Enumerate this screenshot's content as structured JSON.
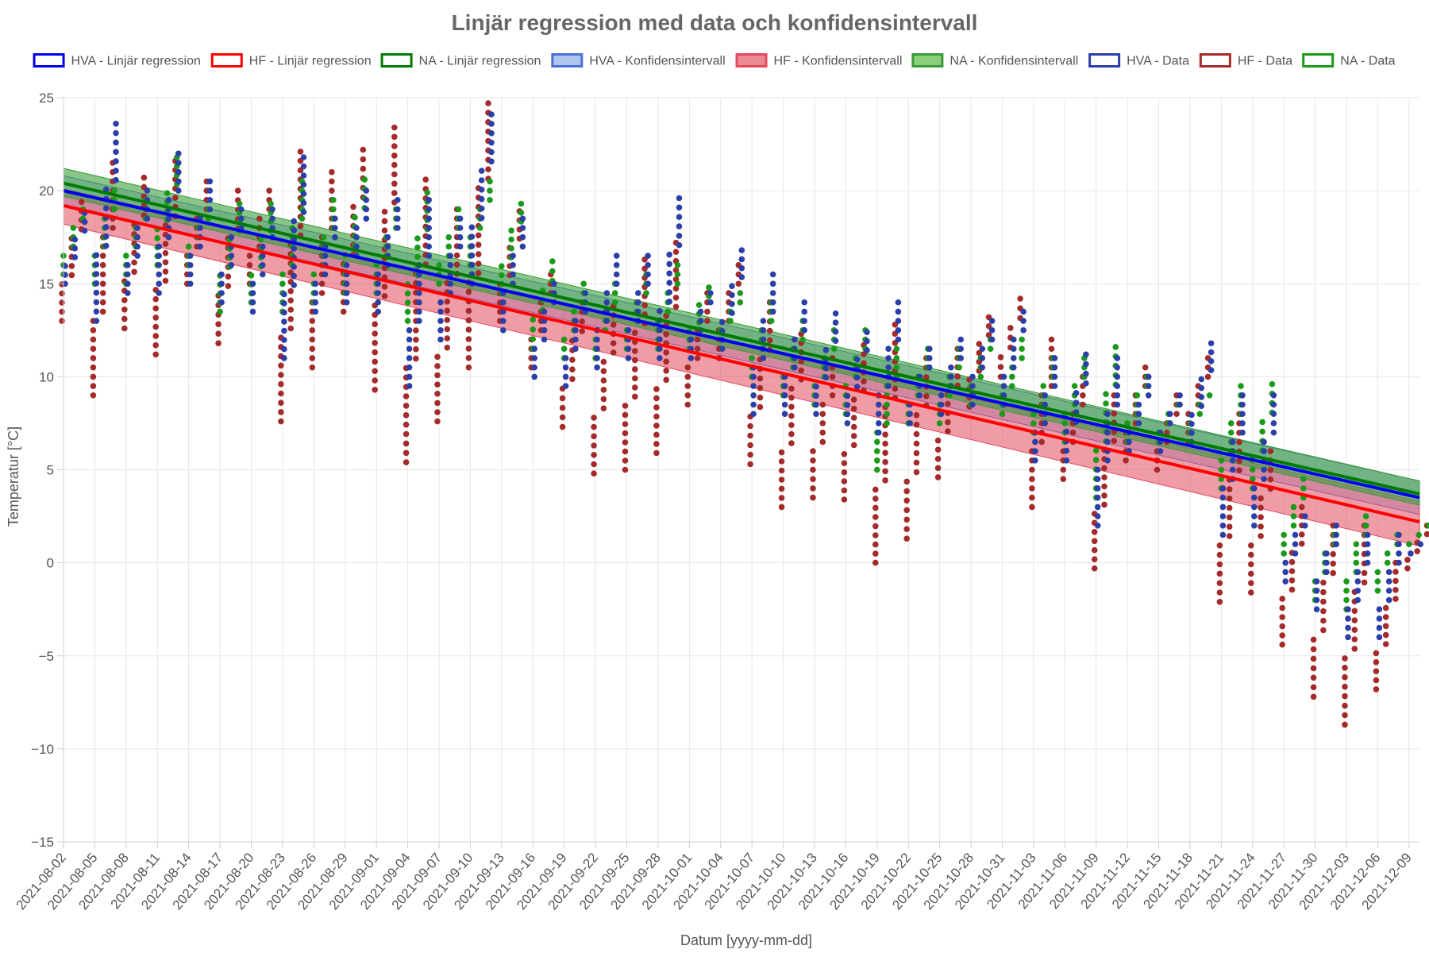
{
  "chart_data": {
    "type": "scatter",
    "title": "Linjär regression med data och konfidensintervall",
    "xlabel": "Datum [yyyy-mm-dd]",
    "ylabel": "Temperatur [°C]",
    "ylim": [
      -15,
      25
    ],
    "y_ticks": [
      25,
      20,
      15,
      10,
      5,
      0,
      -5,
      -10,
      -15
    ],
    "y_tick_labels": [
      "25",
      "20",
      "15",
      "10",
      "5",
      "0",
      "−5",
      "−10",
      "−15"
    ],
    "xlim": [
      "2021-08-02",
      "2021-12-10"
    ],
    "x_ticks": [
      "2021-08-02",
      "2021-08-05",
      "2021-08-08",
      "2021-08-11",
      "2021-08-14",
      "2021-08-17",
      "2021-08-20",
      "2021-08-23",
      "2021-08-26",
      "2021-08-29",
      "2021-09-01",
      "2021-09-04",
      "2021-09-07",
      "2021-09-10",
      "2021-09-13",
      "2021-09-16",
      "2021-09-19",
      "2021-09-22",
      "2021-09-25",
      "2021-09-28",
      "2021-10-01",
      "2021-10-04",
      "2021-10-07",
      "2021-10-10",
      "2021-10-13",
      "2021-10-16",
      "2021-10-19",
      "2021-10-22",
      "2021-10-25",
      "2021-10-28",
      "2021-10-31",
      "2021-11-03",
      "2021-11-06",
      "2021-11-09",
      "2021-11-12",
      "2021-11-15",
      "2021-11-18",
      "2021-11-21",
      "2021-11-24",
      "2021-11-27",
      "2021-11-30",
      "2021-12-03",
      "2021-12-06",
      "2021-12-09"
    ],
    "grid": true,
    "legend_position": "top",
    "legend": [
      {
        "label": "HVA - Linjär regression",
        "stroke": "#0000ee",
        "fill": "#ffffff"
      },
      {
        "label": "HF - Linjär regression",
        "stroke": "#ff0000",
        "fill": "#ffffff"
      },
      {
        "label": "NA - Linjär regression",
        "stroke": "#007a00",
        "fill": "#ffffff"
      },
      {
        "label": "HVA - Konfidensintervall",
        "stroke": "#4a6fd8",
        "fill": "#aec6ec"
      },
      {
        "label": "HF - Konfidensintervall",
        "stroke": "#e24a5e",
        "fill": "#ec8a94"
      },
      {
        "label": "NA - Konfidensintervall",
        "stroke": "#3a9a3a",
        "fill": "#8ad07a"
      },
      {
        "label": "HVA - Data",
        "stroke": "#2b3fa8",
        "fill": "#ffffff"
      },
      {
        "label": "HF - Data",
        "stroke": "#a52a2a",
        "fill": "#ffffff"
      },
      {
        "label": "NA - Data",
        "stroke": "#1a9a1a",
        "fill": "#ffffff"
      }
    ],
    "regression": [
      {
        "series": "HVA",
        "color": "#0000ee",
        "x": [
          "2021-08-02",
          "2021-12-10"
        ],
        "y": [
          20.0,
          3.5
        ]
      },
      {
        "series": "HF",
        "color": "#ff0000",
        "x": [
          "2021-08-02",
          "2021-12-10"
        ],
        "y": [
          19.2,
          2.2
        ]
      },
      {
        "series": "NA",
        "color": "#007a00",
        "x": [
          "2021-08-02",
          "2021-12-10"
        ],
        "y": [
          20.4,
          3.7
        ]
      }
    ],
    "confidence_intervals": [
      {
        "series": "HVA",
        "fill": "rgba(120,150,220,0.45)",
        "stroke": "#4a6fd8",
        "x": [
          "2021-08-02",
          "2021-12-10"
        ],
        "lower": [
          19.2,
          2.6
        ],
        "upper": [
          20.8,
          4.4
        ]
      },
      {
        "series": "HF",
        "fill": "rgba(226,74,94,0.55)",
        "stroke": "#e24a5e",
        "x": [
          "2021-08-02",
          "2021-12-10"
        ],
        "lower": [
          18.2,
          0.9
        ],
        "upper": [
          20.1,
          3.3
        ]
      },
      {
        "series": "NA",
        "fill": "rgba(60,160,60,0.6)",
        "stroke": "#3a9a3a",
        "x": [
          "2021-08-02",
          "2021-12-10"
        ],
        "lower": [
          19.7,
          3.1
        ],
        "upper": [
          21.2,
          4.4
        ]
      }
    ],
    "data_series": [
      {
        "name": "HF",
        "color": "#a52a2a",
        "x": [
          "2021-08-02",
          "2021-08-05",
          "2021-08-08",
          "2021-08-11",
          "2021-08-14",
          "2021-08-17",
          "2021-08-20",
          "2021-08-23",
          "2021-08-26",
          "2021-08-29",
          "2021-09-01",
          "2021-09-04",
          "2021-09-07",
          "2021-09-10",
          "2021-09-13",
          "2021-09-16",
          "2021-09-19",
          "2021-09-22",
          "2021-09-25",
          "2021-09-28",
          "2021-10-01",
          "2021-10-04",
          "2021-10-07",
          "2021-10-10",
          "2021-10-13",
          "2021-10-16",
          "2021-10-19",
          "2021-10-22",
          "2021-10-25",
          "2021-10-28",
          "2021-10-31",
          "2021-11-03",
          "2021-11-06",
          "2021-11-09",
          "2021-11-12",
          "2021-11-15",
          "2021-11-18",
          "2021-11-21",
          "2021-11-24",
          "2021-11-27",
          "2021-11-30",
          "2021-12-03",
          "2021-12-06",
          "2021-12-09"
        ],
        "ymin": [
          13.0,
          9.0,
          12.6,
          11.2,
          15.0,
          11.8,
          15.0,
          7.6,
          10.5,
          13.5,
          9.3,
          5.4,
          7.6,
          10.5,
          13.0,
          10.5,
          7.3,
          4.8,
          5.0,
          5.9,
          8.5,
          11.0,
          5.3,
          3.0,
          3.5,
          3.4,
          0.0,
          1.3,
          4.6,
          8.4,
          10.0,
          3.0,
          4.5,
          -0.3,
          5.5,
          5.0,
          6.5,
          -2.1,
          -1.6,
          -4.4,
          -7.2,
          -8.7,
          -6.8,
          -0.3
        ],
        "ymax": [
          19.4,
          21.5,
          20.7,
          21.6,
          20.5,
          20.0,
          20.0,
          22.1,
          21.0,
          22.2,
          23.4,
          20.6,
          19.0,
          24.7,
          18.9,
          15.5,
          14.0,
          13.8,
          16.3,
          17.2,
          14.5,
          16.0,
          14.0,
          12.3,
          11.0,
          11.7,
          12.8,
          11.0,
          11.5,
          13.2,
          14.2,
          12.0,
          10.0,
          9.0,
          10.5,
          9.0,
          11.0,
          8.0,
          6.0,
          3.0,
          2.0,
          2.0,
          0.0,
          2.0
        ]
      },
      {
        "name": "NA",
        "color": "#1a9a1a",
        "x": [
          "2021-08-02",
          "2021-08-05",
          "2021-08-08",
          "2021-08-11",
          "2021-08-14",
          "2021-08-17",
          "2021-08-20",
          "2021-08-23",
          "2021-08-26",
          "2021-08-29",
          "2021-09-01",
          "2021-09-04",
          "2021-09-07",
          "2021-09-10",
          "2021-09-13",
          "2021-09-16",
          "2021-09-19",
          "2021-09-22",
          "2021-09-25",
          "2021-09-28",
          "2021-10-01",
          "2021-10-04",
          "2021-10-07",
          "2021-10-10",
          "2021-10-13",
          "2021-10-16",
          "2021-10-19",
          "2021-10-22",
          "2021-10-25",
          "2021-10-28",
          "2021-10-31",
          "2021-11-03",
          "2021-11-06",
          "2021-11-09",
          "2021-11-12",
          "2021-11-15",
          "2021-11-18",
          "2021-11-21",
          "2021-11-24",
          "2021-11-27",
          "2021-11-30",
          "2021-12-03",
          "2021-12-06",
          "2021-12-09"
        ],
        "ymin": [
          15.5,
          15.0,
          15.0,
          16.0,
          16.0,
          13.5,
          14.0,
          13.5,
          14.0,
          14.5,
          14.5,
          13.0,
          15.0,
          16.0,
          14.5,
          11.5,
          11.0,
          11.0,
          11.5,
          11.5,
          11.5,
          12.0,
          10.0,
          9.0,
          8.5,
          8.0,
          5.0,
          7.5,
          7.5,
          8.5,
          8.0,
          7.0,
          6.5,
          3.5,
          6.5,
          6.5,
          7.0,
          4.0,
          4.0,
          0.5,
          -2.0,
          -2.5,
          -1.5,
          1.0
        ],
        "ymax": [
          19.0,
          20.0,
          19.5,
          21.8,
          19.0,
          19.3,
          19.3,
          20.5,
          19.5,
          20.6,
          19.0,
          19.9,
          19.0,
          20.5,
          19.3,
          16.2,
          15.0,
          15.0,
          15.5,
          16.0,
          14.8,
          14.5,
          14.0,
          13.0,
          12.5,
          12.5,
          11.5,
          11.5,
          11.5,
          12.0,
          12.0,
          11.0,
          11.0,
          11.6,
          10.0,
          8.5,
          9.0,
          9.5,
          9.6,
          4.5,
          1.5,
          2.5,
          1.5,
          2.0
        ]
      },
      {
        "name": "HVA",
        "color": "#2b3fa8",
        "x": [
          "2021-08-02",
          "2021-08-05",
          "2021-08-08",
          "2021-08-11",
          "2021-08-14",
          "2021-08-17",
          "2021-08-20",
          "2021-08-23",
          "2021-08-26",
          "2021-08-29",
          "2021-09-01",
          "2021-09-04",
          "2021-09-07",
          "2021-09-10",
          "2021-09-13",
          "2021-09-16",
          "2021-09-19",
          "2021-09-22",
          "2021-09-25",
          "2021-09-28",
          "2021-10-01",
          "2021-10-04",
          "2021-10-07",
          "2021-10-10",
          "2021-10-13",
          "2021-10-16",
          "2021-10-19",
          "2021-10-22",
          "2021-10-25",
          "2021-10-28",
          "2021-10-31",
          "2021-11-03",
          "2021-11-06",
          "2021-11-09",
          "2021-11-12",
          "2021-11-15",
          "2021-11-18",
          "2021-11-21",
          "2021-11-24",
          "2021-11-27",
          "2021-11-30",
          "2021-12-03",
          "2021-12-06",
          "2021-12-09"
        ],
        "ymin": [
          15.0,
          13.0,
          14.5,
          14.5,
          15.0,
          14.0,
          13.5,
          11.0,
          13.5,
          14.0,
          13.5,
          9.5,
          12.0,
          15.0,
          12.5,
          10.0,
          9.5,
          10.5,
          11.0,
          11.0,
          11.0,
          11.5,
          8.0,
          8.0,
          8.0,
          7.5,
          7.0,
          7.5,
          8.0,
          8.5,
          8.5,
          5.5,
          5.5,
          2.0,
          6.0,
          6.0,
          6.5,
          1.5,
          2.0,
          -1.0,
          -2.5,
          -4.0,
          -4.0,
          0.5
        ],
        "ymax": [
          18.8,
          23.6,
          20.0,
          22.0,
          20.5,
          19.0,
          19.0,
          21.8,
          18.5,
          20.0,
          19.5,
          19.5,
          18.5,
          24.1,
          18.5,
          15.0,
          14.5,
          16.5,
          16.5,
          19.6,
          14.5,
          16.8,
          15.5,
          14.0,
          13.4,
          12.4,
          14.0,
          11.5,
          12.0,
          13.0,
          13.5,
          11.0,
          11.2,
          11.0,
          10.0,
          9.0,
          11.8,
          9.0,
          9.0,
          2.5,
          2.0,
          1.5,
          1.5,
          1.0
        ]
      }
    ]
  }
}
